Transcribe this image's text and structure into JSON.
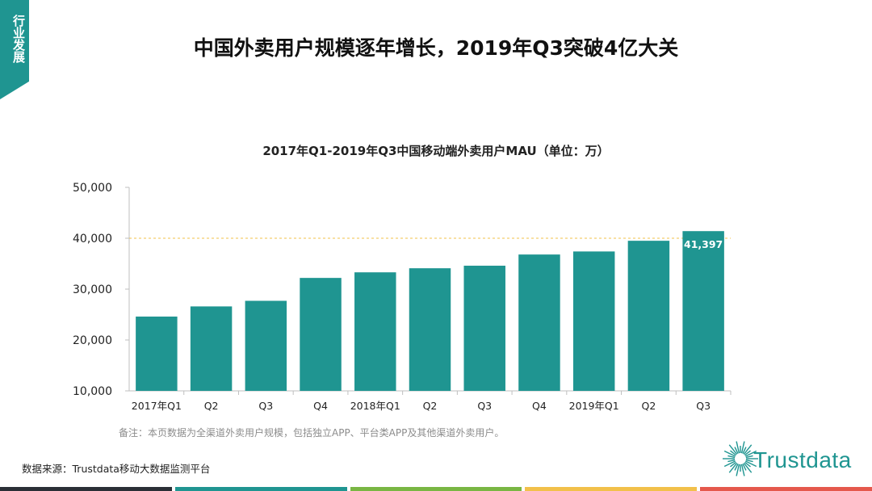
{
  "header": {
    "side_tab_label": "行业发展",
    "title": "中国外卖用户规模逐年增长，2019年Q3突破4亿大关"
  },
  "chart_data": {
    "type": "bar",
    "title": "2017年Q1-2019年Q3中国移动端外卖用户MAU（单位：万）",
    "categories": [
      "2017年Q1",
      "Q2",
      "Q3",
      "Q4",
      "2018年Q1",
      "Q2",
      "Q3",
      "Q4",
      "2019年Q1",
      "Q2",
      "Q3"
    ],
    "values": [
      24600,
      26600,
      27700,
      32200,
      33300,
      34100,
      34600,
      36800,
      37400,
      39500,
      41397
    ],
    "ylim": [
      10000,
      50000
    ],
    "yticks": [
      10000,
      20000,
      30000,
      40000,
      50000
    ],
    "ytick_labels": [
      "10,000",
      "20,000",
      "30,000",
      "40,000",
      "50,000"
    ],
    "reference_line": 40000,
    "annotation": {
      "index": 10,
      "label": "41,397"
    },
    "bar_color": "#1f9591",
    "ref_line_color": "#f2c04a",
    "xlabel": "",
    "ylabel": ""
  },
  "note": "备注：本页数据为全渠道外卖用户规模，包括独立APP、平台类APP及其他渠道外卖用户。",
  "source": "数据来源：Trustdata移动大数据监测平台",
  "logo": {
    "text": "Trustdata",
    "color": "#1f9591"
  },
  "footer_colors": [
    "#2b2f36",
    "#1f9591",
    "#79b643",
    "#f2c04a",
    "#e5584c"
  ]
}
